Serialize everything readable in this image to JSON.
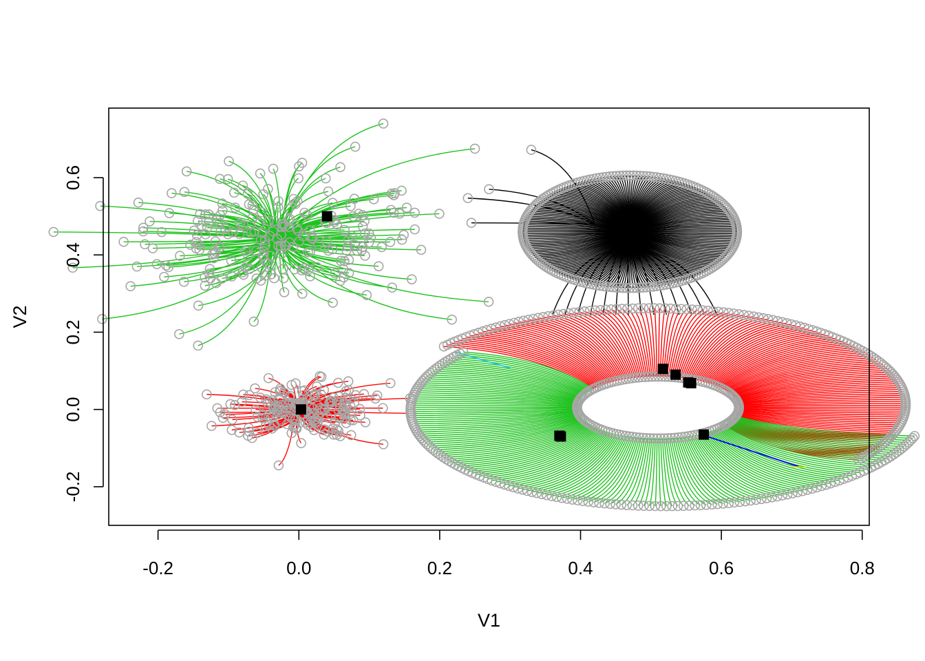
{
  "chart_data": {
    "type": "scatter",
    "title": "",
    "xlabel": "V1",
    "ylabel": "V2",
    "xlim": [
      -0.27,
      0.81
    ],
    "ylim": [
      -0.3,
      0.78
    ],
    "x_ticks": [
      -0.2,
      0.0,
      0.2,
      0.4,
      0.6,
      0.8
    ],
    "y_ticks": [
      -0.2,
      0.0,
      0.2,
      0.4,
      0.6
    ],
    "x_tick_labels": [
      "-0.2",
      "0.0",
      "0.2",
      "0.4",
      "0.6",
      "0.8"
    ],
    "y_tick_labels": [
      "-0.2",
      "0.0",
      "0.2",
      "0.4",
      "0.6"
    ],
    "grid": false,
    "legend": "none",
    "point_color": "#a6a6a6",
    "center_color": "#000000",
    "clusters": [
      {
        "shape": "blob",
        "color": "#1ec21e",
        "center": [
          0.04,
          0.5
        ],
        "hub": [
          -0.03,
          0.44
        ],
        "spread": [
          0.11,
          0.09
        ],
        "count": 230,
        "outliers": [
          [
            0.12,
            0.74
          ],
          [
            0.25,
            0.675
          ],
          [
            0.08,
            0.68
          ],
          [
            -0.17,
            0.195
          ],
          [
            -0.23,
            0.37
          ]
        ]
      },
      {
        "shape": "blob",
        "color": "#ff0000",
        "center": [
          0.003,
          0.0
        ],
        "hub": [
          0.0,
          0.0
        ],
        "spread": [
          0.05,
          0.04
        ],
        "count": 190,
        "outliers": [
          [
            0.13,
            0.068
          ],
          [
            0.12,
            -0.09
          ],
          [
            0.16,
            -0.01
          ]
        ]
      },
      {
        "shape": "ellipse",
        "color": "#000000",
        "center": [
          0.47,
          0.46
        ],
        "radii": [
          0.145,
          0.145
        ],
        "count": 200,
        "outliers": [
          [
            0.33,
            0.672
          ],
          [
            0.27,
            0.57
          ],
          [
            0.24,
            0.547
          ],
          [
            0.245,
            0.483
          ]
        ]
      },
      {
        "shape": "ring",
        "color": "#ff0000",
        "center": [
          0.555,
          0.065
        ],
        "members": [
          [
            0.517,
            0.105
          ],
          [
            0.535,
            0.09
          ],
          [
            0.553,
            0.07
          ],
          [
            0.557,
            0.068
          ],
          [
            0.575,
            -0.065
          ]
        ],
        "count": 150
      },
      {
        "shape": "ring",
        "color": "#1ec21e",
        "center": [
          0.37,
          -0.068
        ],
        "members": [
          [
            0.37,
            -0.068
          ],
          [
            0.372,
            -0.07
          ]
        ],
        "count": 160
      }
    ],
    "accent_lines": [
      {
        "color": "#0000ff",
        "from": [
          0.58,
          -0.07
        ],
        "to": [
          0.71,
          -0.148
        ]
      },
      {
        "color": "#22ccdd",
        "from": [
          0.3,
          0.107
        ],
        "to": [
          0.22,
          0.15
        ]
      },
      {
        "color": "#dddd22",
        "from": [
          0.7,
          -0.148
        ],
        "to": [
          0.72,
          -0.15
        ]
      }
    ]
  }
}
